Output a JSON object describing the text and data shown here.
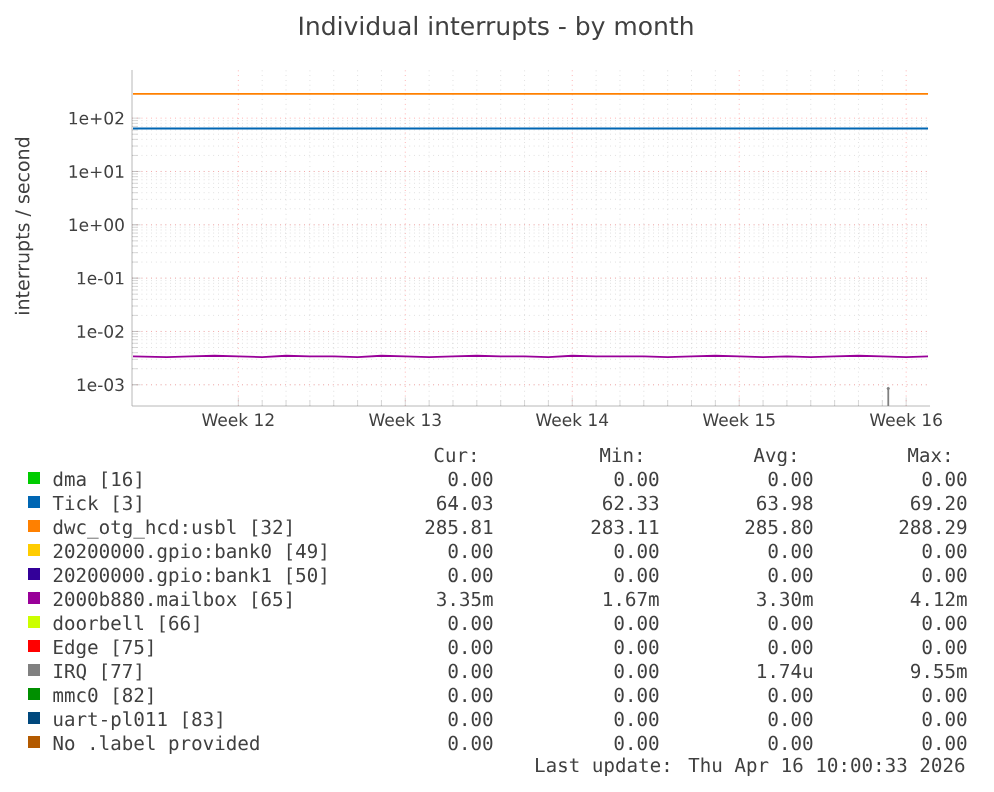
{
  "chart_data": {
    "type": "line",
    "title": "Individual interrupts - by month",
    "ylabel": "interrupts / second",
    "log": "y",
    "grid": true,
    "legend": "bottom",
    "xlim": [
      "2026-03-15T01:00",
      "2026-04-17T12:00"
    ],
    "xticks": [
      {
        "value": "2026-03-19T12:00",
        "label": "Week 12"
      },
      {
        "value": "2026-03-26T12:00",
        "label": "Week 13"
      },
      {
        "value": "2026-04-02T12:00",
        "label": "Week 14"
      },
      {
        "value": "2026-04-09T12:00",
        "label": "Week 15"
      },
      {
        "value": "2026-04-16T12:00",
        "label": "Week 16"
      }
    ],
    "ylim": [
      0.0004,
      800
    ],
    "yticks": [
      {
        "value": 0.001,
        "label": "1e-03"
      },
      {
        "value": 0.01,
        "label": "1e-02"
      },
      {
        "value": 0.1,
        "label": "1e-01"
      },
      {
        "value": 1,
        "label": "1e+00"
      },
      {
        "value": 10,
        "label": "1e+01"
      },
      {
        "value": 100,
        "label": "1e+02"
      }
    ],
    "x": [
      "2026-03-15T02:00",
      "2026-04-17T10:00"
    ],
    "series": [
      {
        "name": "dma [16]",
        "color": "#00cc00",
        "values": [
          null,
          null
        ]
      },
      {
        "name": "Tick [3]",
        "color": "#0066b3",
        "values": [
          64,
          64
        ]
      },
      {
        "name": "dwc_otg_hcd:usbl [32]",
        "color": "#ff8000",
        "values": [
          286,
          286
        ]
      },
      {
        "name": "20200000.gpio:bank0 [49]",
        "color": "#ffcc00",
        "values": [
          null,
          null
        ]
      },
      {
        "name": "20200000.gpio:bank1 [50]",
        "color": "#330099",
        "values": [
          null,
          null
        ]
      },
      {
        "name": "2000b880.mailbox [65]",
        "color": "#990099",
        "x": [
          "2026-03-15T02:00",
          "2026-03-16T12:00",
          "2026-03-17T12:00",
          "2026-03-18T12:00",
          "2026-03-19T12:00",
          "2026-03-20T12:00",
          "2026-03-21T12:00",
          "2026-03-22T12:00",
          "2026-03-23T12:00",
          "2026-03-24T12:00",
          "2026-03-25T12:00",
          "2026-03-26T12:00",
          "2026-03-27T12:00",
          "2026-03-28T12:00",
          "2026-03-29T12:00",
          "2026-03-30T12:00",
          "2026-03-31T12:00",
          "2026-04-01T12:00",
          "2026-04-02T12:00",
          "2026-04-03T12:00",
          "2026-04-04T12:00",
          "2026-04-05T12:00",
          "2026-04-06T12:00",
          "2026-04-07T12:00",
          "2026-04-08T12:00",
          "2026-04-09T12:00",
          "2026-04-10T12:00",
          "2026-04-11T12:00",
          "2026-04-12T12:00",
          "2026-04-13T12:00",
          "2026-04-14T12:00",
          "2026-04-15T12:00",
          "2026-04-16T12:00",
          "2026-04-17T10:00"
        ],
        "values": [
          0.0034,
          0.0033,
          0.0034,
          0.0035,
          0.0034,
          0.0033,
          0.0035,
          0.0034,
          0.0034,
          0.0033,
          0.0035,
          0.0034,
          0.0033,
          0.0034,
          0.0035,
          0.0034,
          0.0034,
          0.0033,
          0.0035,
          0.0034,
          0.0034,
          0.0034,
          0.0033,
          0.0034,
          0.0035,
          0.0034,
          0.0033,
          0.0034,
          0.0033,
          0.0034,
          0.0035,
          0.0034,
          0.0033,
          0.0034
        ]
      },
      {
        "name": "doorbell [66]",
        "color": "#ccff00",
        "values": [
          null,
          null
        ]
      },
      {
        "name": "Edge [75]",
        "color": "#ff0000",
        "values": [
          null,
          null
        ]
      },
      {
        "name": "IRQ [77]",
        "color": "#808080",
        "x": [
          "2026-04-15T18:00"
        ],
        "values": [
          0.00085
        ],
        "marker": "circle"
      },
      {
        "name": "mmc0 [82]",
        "color": "#008f00",
        "values": [
          null,
          null
        ]
      },
      {
        "name": "uart-pl011 [83]",
        "color": "#00487d",
        "values": [
          null,
          null
        ]
      },
      {
        "name": "No .label provided",
        "color": "#b35a00",
        "values": [
          null,
          null
        ]
      }
    ],
    "annotations": [
      "Cur:",
      "Min:",
      "Avg:",
      "Max:",
      "0.00",
      "0.00",
      "0.00",
      "0.00",
      "64.03",
      "62.33",
      "63.98",
      "69.20",
      "285.81",
      "283.11",
      "285.80",
      "288.29",
      "0.00",
      "0.00",
      "0.00",
      "0.00",
      "0.00",
      "0.00",
      "0.00",
      "0.00",
      "3.35m",
      "1.67m",
      "3.30m",
      "4.12m",
      "0.00",
      "0.00",
      "0.00",
      "0.00",
      "0.00",
      "0.00",
      "0.00",
      "0.00",
      "0.00",
      "0.00",
      "1.74u",
      "9.55m",
      "0.00",
      "0.00",
      "0.00",
      "0.00",
      "0.00",
      "0.00",
      "0.00",
      "0.00",
      "0.00",
      "0.00",
      "0.00",
      "0.00",
      "Last update: Thu Apr 16 10:00:33 2026"
    ]
  }
}
